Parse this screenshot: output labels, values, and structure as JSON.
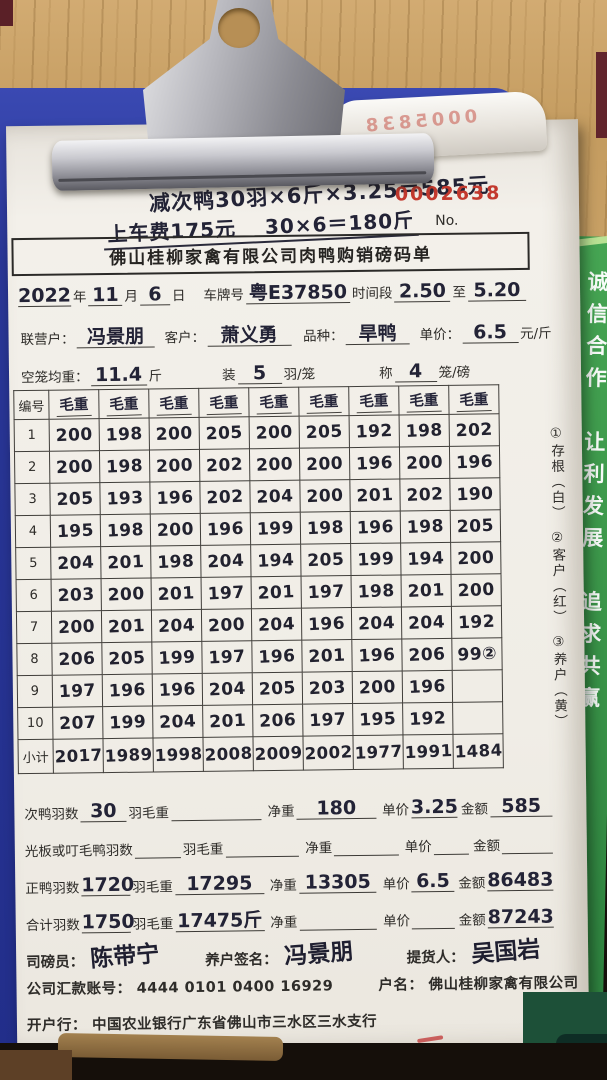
{
  "env": {
    "mirrored_number": "0005838",
    "green_slogan": "诚信合作　让利发展　追求共赢"
  },
  "note": {
    "line1": "减次鸭30羽×6斤×3.25＝585元",
    "line2": "上车费175元　 30×6＝180斤",
    "serial": "0002638",
    "no_label": "No."
  },
  "title": "佛山桂柳家禽有限公司肉鸭购销磅码单",
  "header": {
    "year": "2022",
    "l_year": "年",
    "month": "11",
    "l_month": "月",
    "day": "6",
    "l_day": "日",
    "l_plate": "车牌号",
    "plate": "粤E37850",
    "l_time": "时间段",
    "time_from": "2.50",
    "l_to": "至",
    "time_to": "5.20",
    "l_partner": "联营户：",
    "partner": "冯景朋",
    "l_customer": "客户：",
    "customer": "萧义勇",
    "l_breed": "品种：",
    "breed": "旱鸭",
    "l_price": "单价：",
    "price": "6.5",
    "l_price_unit": "元/斤",
    "l_cage_weight": "空笼均重：",
    "cage_weight": "11.4",
    "l_jin": "斤",
    "l_load": "装",
    "load": "5",
    "l_load_unit": "羽/笼",
    "l_weigh": "称",
    "weigh": "4",
    "l_weigh_unit": "笼/磅"
  },
  "table": {
    "corner": "编号",
    "col_header": "毛重",
    "rows": [
      {
        "no": "1",
        "cells": [
          "200",
          "198",
          "200",
          "205",
          "200",
          "205",
          "192",
          "198",
          "202"
        ]
      },
      {
        "no": "2",
        "cells": [
          "200",
          "198",
          "200",
          "202",
          "200",
          "200",
          "196",
          "200",
          "196"
        ]
      },
      {
        "no": "3",
        "cells": [
          "205",
          "193",
          "196",
          "202",
          "204",
          "200",
          "201",
          "202",
          "190"
        ]
      },
      {
        "no": "4",
        "cells": [
          "195",
          "198",
          "200",
          "196",
          "199",
          "198",
          "196",
          "198",
          "205"
        ]
      },
      {
        "no": "5",
        "cells": [
          "204",
          "201",
          "198",
          "204",
          "194",
          "205",
          "199",
          "194",
          "200"
        ]
      },
      {
        "no": "6",
        "cells": [
          "203",
          "200",
          "201",
          "197",
          "201",
          "197",
          "198",
          "201",
          "200"
        ]
      },
      {
        "no": "7",
        "cells": [
          "200",
          "201",
          "204",
          "200",
          "204",
          "196",
          "204",
          "204",
          "192"
        ]
      },
      {
        "no": "8",
        "cells": [
          "206",
          "205",
          "199",
          "197",
          "196",
          "201",
          "196",
          "206",
          "99②"
        ]
      },
      {
        "no": "9",
        "cells": [
          "197",
          "196",
          "196",
          "204",
          "205",
          "203",
          "200",
          "196",
          ""
        ]
      },
      {
        "no": "10",
        "cells": [
          "207",
          "199",
          "204",
          "201",
          "206",
          "197",
          "195",
          "192",
          ""
        ]
      }
    ],
    "subtotal_label": "小计",
    "subtotal": [
      "2017",
      "1989",
      "1998",
      "2008",
      "2009",
      "2002",
      "1977",
      "1991",
      "1484"
    ]
  },
  "margin_notes": "①存根（白）　②客户（红）　③养户（黄）",
  "summary": {
    "labels": {
      "unit": "羽",
      "gross": "毛重",
      "net": "净重",
      "price": "单价",
      "amount": "金额"
    },
    "rows": [
      {
        "label": "次鸭羽数",
        "count": "30",
        "gross": "",
        "net": "180",
        "price": "3.25",
        "amount": "585"
      },
      {
        "label": "光板或叮毛鸭羽数",
        "count": "",
        "gross": "",
        "net": "",
        "price": "",
        "amount": ""
      },
      {
        "label": "正鸭羽数",
        "count": "1720",
        "gross": "17295",
        "net": "13305",
        "price": "6.5",
        "amount": "86483"
      },
      {
        "label": "合计羽数",
        "count": "1750",
        "gross": "17475斤",
        "net": "",
        "price": "",
        "amount": "87243"
      }
    ]
  },
  "footer": {
    "l_weigher": "司磅员：",
    "weigher": "陈带宁",
    "l_farmer_sign": "养户签名：",
    "farmer_sign": "冯景朋",
    "l_picker": "提货人：",
    "picker": "吴国岩",
    "l_account": "公司汇款账号：",
    "account": "4444 0101 0400 16929",
    "l_account_name": "户名：",
    "account_name": "佛山桂柳家禽有限公司",
    "l_bank": "开户行：",
    "bank": "中国农业银行广东省佛山市三水区三水支行"
  },
  "colors": {
    "clipboard_blue": "#2a3798",
    "green_strip": "#389247",
    "stamp_red": "#c3392e",
    "wood": "#c49c60"
  }
}
